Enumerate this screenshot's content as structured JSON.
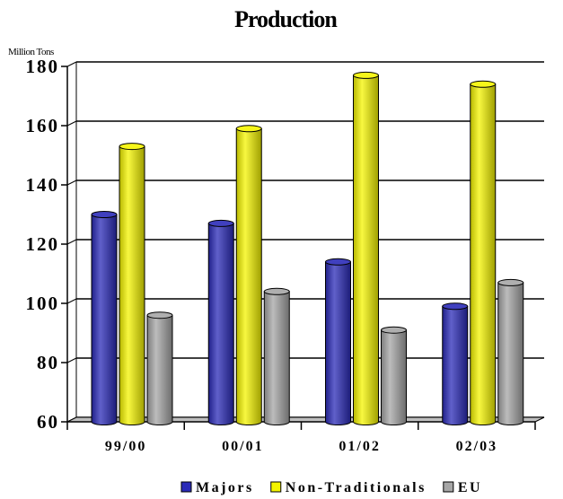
{
  "chart_data": {
    "type": "bar",
    "title": "Production",
    "ylabel": "Million Tons",
    "xlabel": "",
    "categories": [
      "99/00",
      "00/01",
      "01/02",
      "02/03"
    ],
    "ylim": [
      60,
      180
    ],
    "yticks": [
      60,
      80,
      100,
      120,
      140,
      160,
      180
    ],
    "grid": true,
    "legend_position": "bottom",
    "series": [
      {
        "name": "Majors",
        "values": [
          130,
          127,
          114,
          99
        ],
        "color": "#2b2bb8"
      },
      {
        "name": "Non-Traditionals",
        "values": [
          153,
          159,
          177,
          174
        ],
        "color": "#f5f500"
      },
      {
        "name": "EU",
        "values": [
          96,
          104,
          91,
          107
        ],
        "color": "#a6a6a6"
      }
    ]
  }
}
